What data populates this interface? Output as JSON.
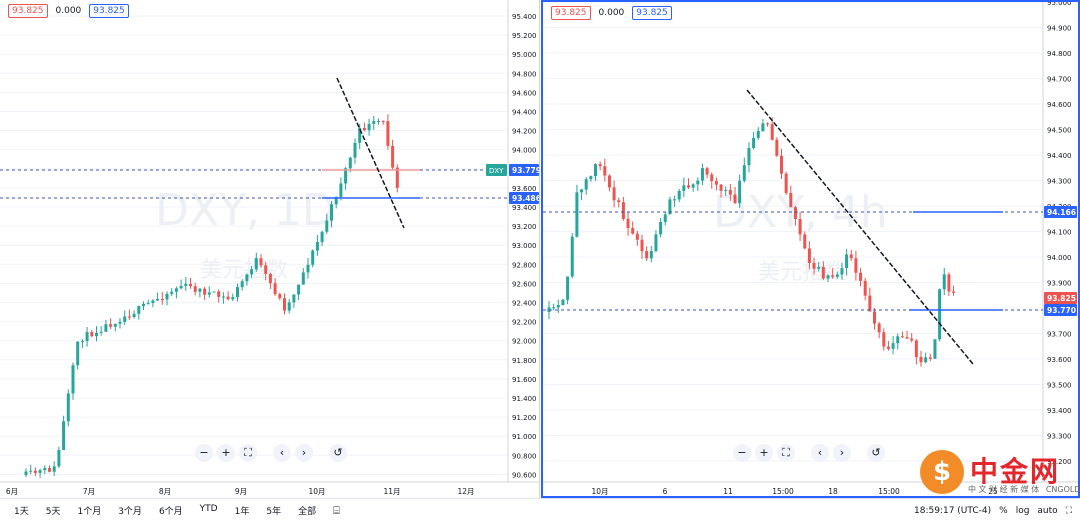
{
  "left": {
    "ohlc": [
      "93.825",
      "0.000",
      "93.825"
    ],
    "watermark": "DXY, 1D",
    "watermark_sub": "美元指数",
    "y_ticks": [
      "95.400",
      "95.200",
      "95.000",
      "94.800",
      "94.600",
      "94.400",
      "94.200",
      "94.000",
      "93.800",
      "93.600",
      "93.400",
      "93.200",
      "93.000",
      "92.800",
      "92.600",
      "92.400",
      "92.200",
      "92.000",
      "91.800",
      "91.600",
      "91.400",
      "91.200",
      "91.000",
      "90.800",
      "90.600"
    ],
    "x_ticks": [
      "6月",
      "7月",
      "8月",
      "9月",
      "10月",
      "11月",
      "12月"
    ],
    "price_tags": [
      {
        "symbol": "DXY",
        "value": "93.779"
      },
      {
        "value": "93.486"
      }
    ],
    "nav": [
      "−",
      "+",
      "⛶",
      "‹",
      "›",
      "↺"
    ]
  },
  "right": {
    "ohlc": [
      "93.825",
      "0.000",
      "93.825"
    ],
    "watermark": "DXY, 4h",
    "watermark_sub": "美元指数",
    "y_ticks": [
      "95.000",
      "94.900",
      "94.800",
      "94.700",
      "94.600",
      "94.500",
      "94.400",
      "94.300",
      "94.200",
      "94.100",
      "94.000",
      "93.900",
      "93.800",
      "93.700",
      "93.600",
      "93.500",
      "93.400",
      "93.300",
      "93.200"
    ],
    "x_ticks": [
      "10月",
      "6",
      "11",
      "15:00",
      "18",
      "15:00",
      "25"
    ],
    "price_tags": [
      {
        "value": "94.166"
      },
      {
        "value": "93.825"
      },
      {
        "value": "93.770"
      }
    ],
    "nav": [
      "−",
      "+",
      "⛶",
      "‹",
      "›",
      "↺"
    ]
  },
  "bottom": {
    "timeframes": [
      "1天",
      "5天",
      "1个月",
      "3个月",
      "6个月",
      "YTD",
      "1年",
      "5年",
      "全部"
    ],
    "compare_icon": "calendar-range-icon",
    "clock": "18:59:17 (UTC-4)",
    "percent": "%",
    "log": "log",
    "auto": "auto",
    "fullscreen_icon": "fullscreen-icon"
  },
  "brand": {
    "title": "中金网",
    "subtitle": "中 文 财 经 新 媒 体",
    "url": "CNGOLD.COM"
  },
  "colors": {
    "up": "#26a69a",
    "down": "#ef5350",
    "accent": "#2962ff"
  }
}
